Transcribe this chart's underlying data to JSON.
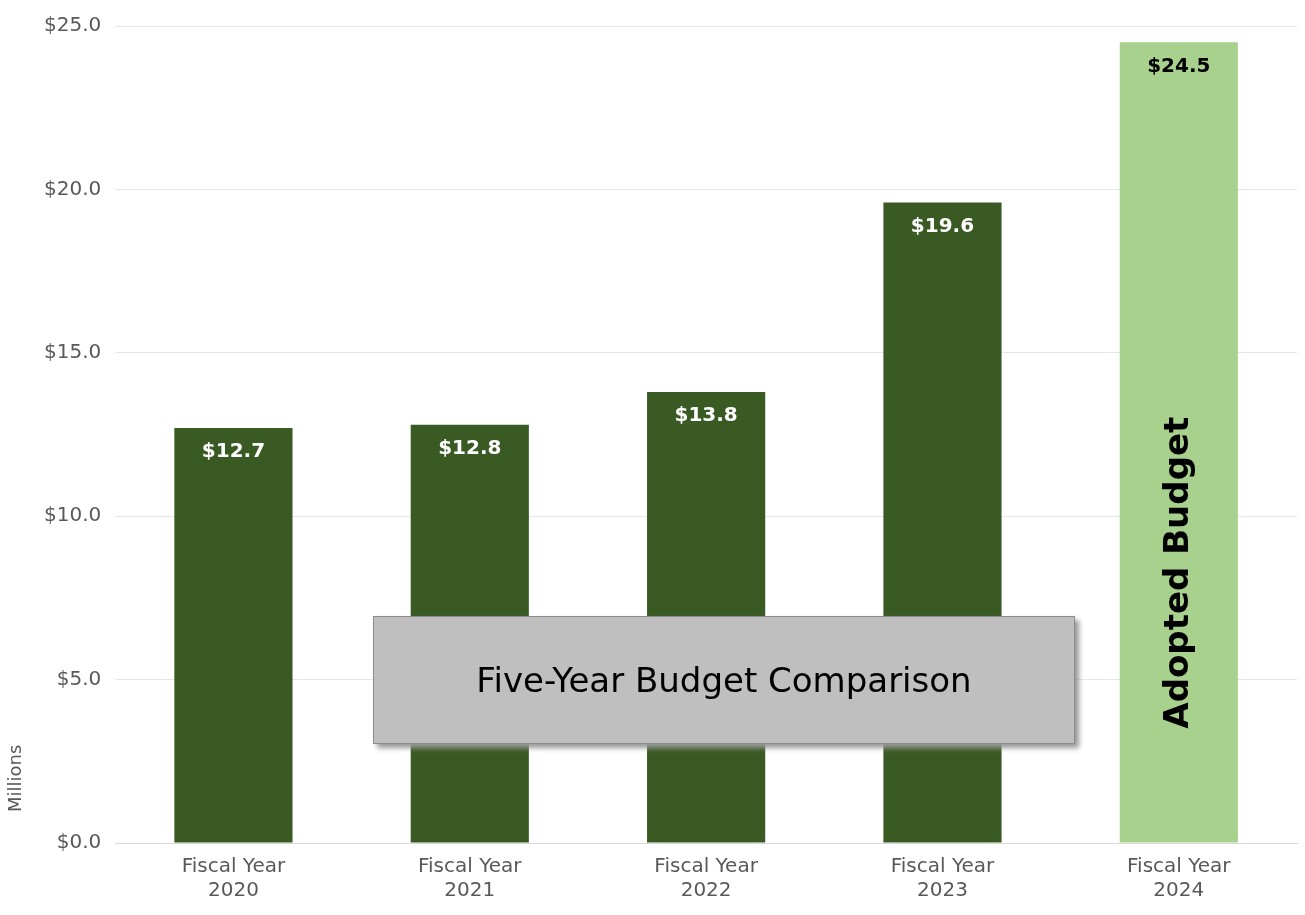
{
  "chart_data": {
    "type": "bar",
    "title": "Five-Year Budget Comparison",
    "ylabel": "Millions",
    "categories": [
      "Fiscal Year 2020",
      "Fiscal Year 2021",
      "Fiscal Year 2022",
      "Fiscal Year 2023",
      "Fiscal Year 2024"
    ],
    "values": [
      12.7,
      12.8,
      13.8,
      19.6,
      24.5
    ],
    "colors": [
      "#3a5a24",
      "#3a5a24",
      "#3a5a24",
      "#3a5a24",
      "#a9d18e"
    ],
    "value_labels": [
      "$12.7",
      "$12.8",
      "$13.8",
      "$19.6",
      "$24.5"
    ],
    "annotations": [
      "Adopted Budget"
    ],
    "ylim": [
      0,
      25
    ],
    "yticks": [
      {
        "value": 0,
        "label": "$0.0"
      },
      {
        "value": 5,
        "label": "$5.0"
      },
      {
        "value": 10,
        "label": "$10.0"
      },
      {
        "value": 15,
        "label": "$15.0"
      },
      {
        "value": 20,
        "label": "$20.0"
      },
      {
        "value": 25,
        "label": "$25.0"
      }
    ],
    "grid": "y",
    "legend": false
  }
}
